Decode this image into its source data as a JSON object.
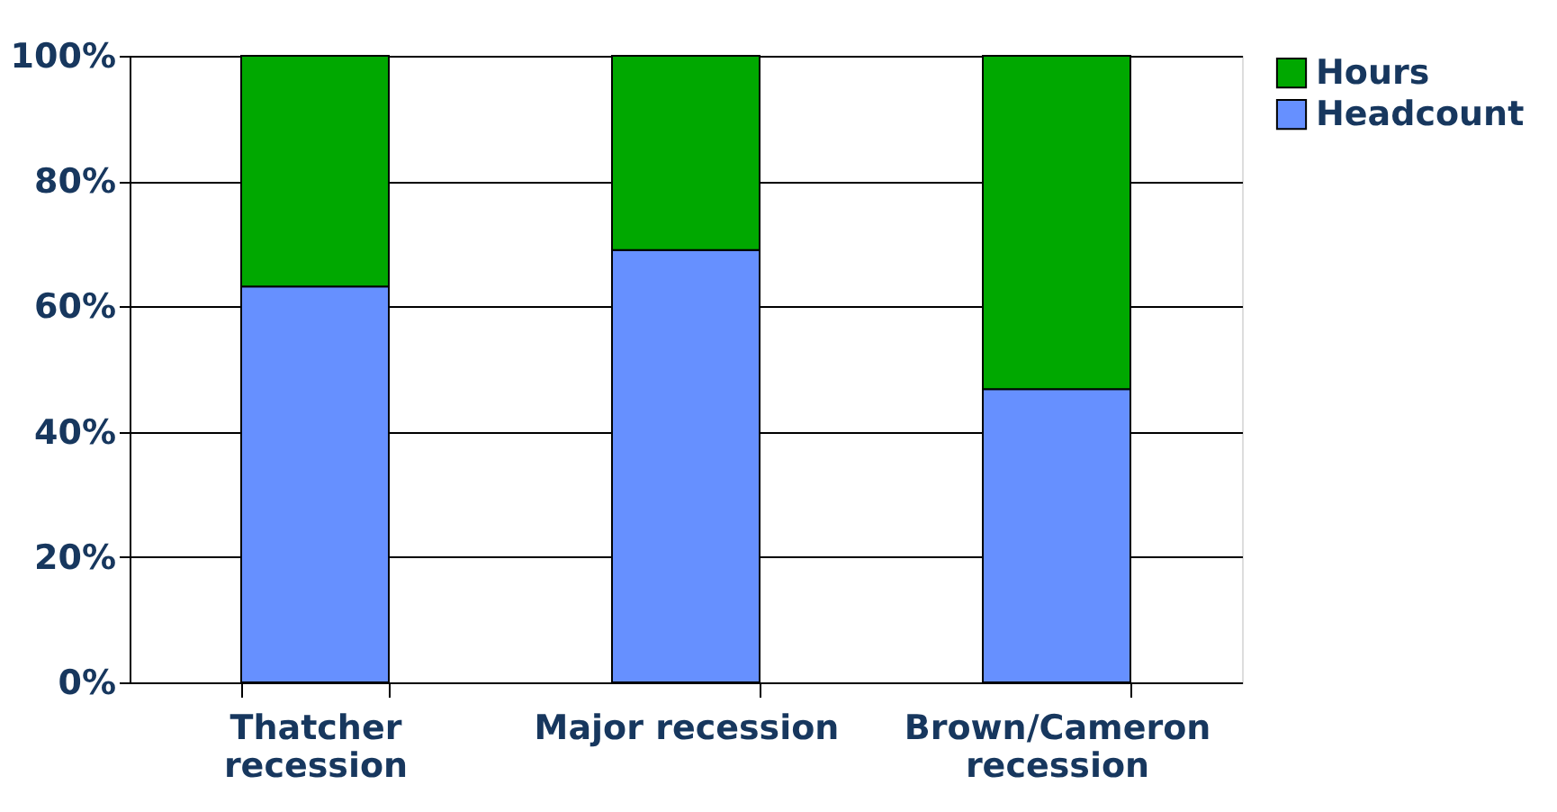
{
  "chart_data": {
    "type": "bar",
    "stacked": true,
    "categories": [
      "Thatcher recession",
      "Major recession",
      "Brown/Cameron recession"
    ],
    "series": [
      {
        "name": "Headcount",
        "color": "#6690ff",
        "values": [
          63.2,
          69.0,
          46.8
        ]
      },
      {
        "name": "Hours",
        "color": "#00a800",
        "values": [
          36.8,
          31.0,
          53.2
        ]
      }
    ],
    "ylim": [
      0,
      100
    ],
    "yticks": [
      {
        "value": 0,
        "label": "0%"
      },
      {
        "value": 20,
        "label": "20%"
      },
      {
        "value": 40,
        "label": "40%"
      },
      {
        "value": 60,
        "label": "60%"
      },
      {
        "value": 80,
        "label": "80%"
      },
      {
        "value": 100,
        "label": "100%"
      }
    ],
    "grid": "y",
    "legend": "right"
  }
}
